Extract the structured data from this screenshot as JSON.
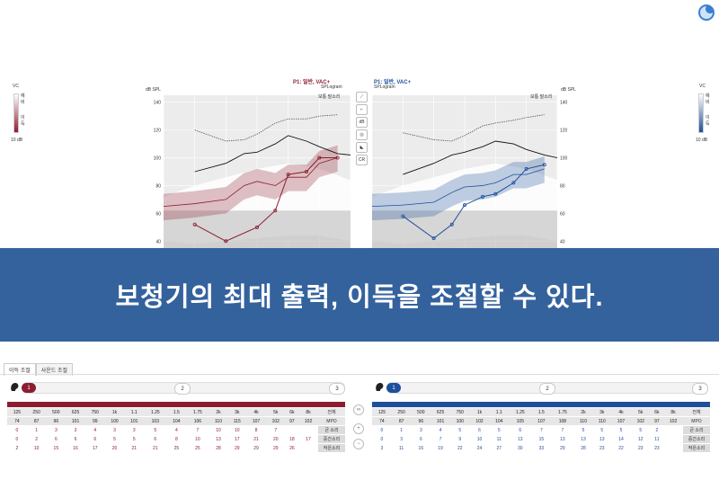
{
  "colors": {
    "left": "#8c1d30",
    "right": "#1d4f9a",
    "banner": "#2e5d9a"
  },
  "vc": {
    "label": "VC",
    "max_chars": "예\n비",
    "gain_chars": "이\n득",
    "scale": "10 dB",
    "left_level": 0.6,
    "right_level": 0.6
  },
  "left_chart": {
    "title": "P1: 일반, VAC+",
    "subtitle": "SPLogram",
    "unit": "dB SPL",
    "note": "보통 말소리",
    "y_ticks": [
      "140",
      "120",
      "100",
      "80",
      "60",
      "40"
    ],
    "ucl": [
      [
        250,
        120
      ],
      [
        500,
        112
      ],
      [
        750,
        113
      ],
      [
        1000,
        117
      ],
      [
        1500,
        125
      ],
      [
        2000,
        128
      ],
      [
        3000,
        128
      ],
      [
        4000,
        130
      ],
      [
        6000,
        131
      ]
    ],
    "mpo": [
      [
        250,
        90
      ],
      [
        500,
        96
      ],
      [
        750,
        103
      ],
      [
        1000,
        104
      ],
      [
        1500,
        110
      ],
      [
        2000,
        116
      ],
      [
        3000,
        112
      ],
      [
        4000,
        108
      ],
      [
        6000,
        103
      ],
      [
        8000,
        102
      ]
    ],
    "aided": [
      [
        125,
        65
      ],
      [
        250,
        67
      ],
      [
        500,
        70
      ],
      [
        750,
        80
      ],
      [
        1000,
        83
      ],
      [
        1500,
        80
      ],
      [
        2000,
        86
      ],
      [
        3000,
        86
      ],
      [
        4000,
        96
      ],
      [
        6000,
        100
      ]
    ],
    "threshold": [
      [
        250,
        52
      ],
      [
        500,
        40
      ],
      [
        1000,
        50
      ],
      [
        1500,
        62
      ],
      [
        2000,
        88
      ],
      [
        3000,
        90
      ],
      [
        4000,
        100
      ],
      [
        6000,
        100
      ]
    ]
  },
  "right_chart": {
    "title": "P1: 일반, VAC+",
    "subtitle": "SPLogram",
    "unit": "dB SPL",
    "note": "보통 말소리",
    "y_ticks": [
      "140",
      "120",
      "100",
      "80",
      "60",
      "40"
    ],
    "ucl": [
      [
        250,
        118
      ],
      [
        500,
        113
      ],
      [
        750,
        112
      ],
      [
        1000,
        116
      ],
      [
        1500,
        123
      ],
      [
        2000,
        125
      ],
      [
        3000,
        127
      ],
      [
        4000,
        129
      ],
      [
        6000,
        131
      ]
    ],
    "mpo": [
      [
        250,
        88
      ],
      [
        500,
        96
      ],
      [
        750,
        102
      ],
      [
        1000,
        104
      ],
      [
        1500,
        108
      ],
      [
        2000,
        112
      ],
      [
        3000,
        110
      ],
      [
        4000,
        106
      ],
      [
        6000,
        102
      ],
      [
        8000,
        100
      ]
    ],
    "aided": [
      [
        125,
        65
      ],
      [
        250,
        66
      ],
      [
        500,
        68
      ],
      [
        750,
        75
      ],
      [
        1000,
        79
      ],
      [
        1500,
        80
      ],
      [
        2000,
        82
      ],
      [
        3000,
        88
      ],
      [
        4000,
        88
      ],
      [
        6000,
        92
      ]
    ],
    "threshold": [
      [
        250,
        58
      ],
      [
        500,
        42
      ],
      [
        750,
        52
      ],
      [
        1000,
        66
      ],
      [
        1500,
        72
      ],
      [
        2000,
        74
      ],
      [
        3000,
        82
      ],
      [
        4000,
        92
      ],
      [
        6000,
        95
      ]
    ]
  },
  "toolbar": [
    {
      "icon": "graph-icon",
      "label": "⟋"
    },
    {
      "icon": "curve-icon",
      "label": "⌐"
    },
    {
      "icon": "db-icon",
      "label": "dB"
    },
    {
      "icon": "target-icon",
      "label": "◎"
    },
    {
      "icon": "slope-icon",
      "label": "◣"
    },
    {
      "icon": "cr-icon",
      "label": "CR"
    }
  ],
  "banner": {
    "text": "보청기의 최대 출력, 이득을 조절할 수 있다."
  },
  "tabs": {
    "gain": "이득 조절",
    "sound": "사운드 조절"
  },
  "steps": {
    "s1": "1",
    "s2": "2",
    "s3": "3"
  },
  "left_table": {
    "freqs": [
      "125",
      "250",
      "500",
      "625",
      "750",
      "1k",
      "1.1",
      "1.25",
      "1.5",
      "1.75",
      "2k",
      "3k",
      "4k",
      "5k",
      "6k",
      "8k"
    ],
    "all_label": "전체",
    "rows": [
      {
        "label": "MPO",
        "values": [
          "74",
          "87",
          "96",
          "101",
          "99",
          "100",
          "101",
          "103",
          "104",
          "106",
          "110",
          "115",
          "107",
          "102",
          "97",
          "102"
        ]
      },
      {
        "label": "큰 소리",
        "values": [
          "0",
          "1",
          "3",
          "3",
          "4",
          "3",
          "3",
          "5",
          "4",
          "7",
          "10",
          "10",
          "8",
          "7",
          "",
          ""
        ]
      },
      {
        "label": "중간소리",
        "values": [
          "0",
          "2",
          "6",
          "6",
          "6",
          "5",
          "5",
          "6",
          "8",
          "10",
          "13",
          "17",
          "21",
          "20",
          "18",
          "17"
        ]
      },
      {
        "label": "작은소리",
        "values": [
          "2",
          "10",
          "15",
          "16",
          "17",
          "20",
          "21",
          "21",
          "25",
          "25",
          "28",
          "29",
          "29",
          "29",
          "26",
          ""
        ]
      }
    ]
  },
  "right_table": {
    "freqs": [
      "125",
      "250",
      "500",
      "625",
      "750",
      "1k",
      "1.1",
      "1.25",
      "1.5",
      "1.75",
      "2k",
      "3k",
      "4k",
      "5k",
      "6k",
      "8k"
    ],
    "all_label": "전체",
    "rows": [
      {
        "label": "MPO",
        "values": [
          "74",
          "87",
          "96",
          "101",
          "100",
          "102",
          "104",
          "105",
          "107",
          "108",
          "110",
          "110",
          "107",
          "102",
          "97",
          "102"
        ]
      },
      {
        "label": "큰 소리",
        "values": [
          "0",
          "1",
          "3",
          "4",
          "5",
          "6",
          "5",
          "6",
          "7",
          "7",
          "5",
          "5",
          "5",
          "5",
          "2",
          ""
        ]
      },
      {
        "label": "중간소리",
        "values": [
          "0",
          "3",
          "6",
          "7",
          "9",
          "10",
          "11",
          "13",
          "15",
          "13",
          "13",
          "13",
          "14",
          "12",
          "11",
          ""
        ]
      },
      {
        "label": "작은소리",
        "values": [
          "3",
          "11",
          "16",
          "19",
          "22",
          "24",
          "27",
          "30",
          "33",
          "29",
          "28",
          "23",
          "22",
          "23",
          "23",
          ""
        ]
      }
    ]
  }
}
